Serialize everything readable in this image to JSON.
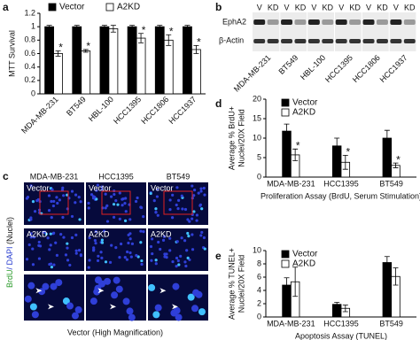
{
  "chart_data": [
    {
      "type": "bar",
      "panel": "a",
      "ylabel": [
        "MTT Survival"
      ],
      "categories": [
        "MDA-MB-231",
        "BT549",
        "HBL-100",
        "HCC1395",
        "HCC1806",
        "HCC1937"
      ],
      "series": [
        {
          "name": "Vector",
          "color": "#000000",
          "values": [
            1,
            1,
            1,
            1,
            1,
            1
          ],
          "errors": [
            0.02,
            0.02,
            0.02,
            0.02,
            0.02,
            0.02
          ]
        },
        {
          "name": "A2KD",
          "color": "#ffffff",
          "values": [
            0.6,
            0.64,
            0.97,
            0.83,
            0.8,
            0.66
          ],
          "errors": [
            0.04,
            0.02,
            0.05,
            0.07,
            0.08,
            0.06
          ],
          "significance": [
            "*",
            "*",
            null,
            "*",
            "*",
            "*"
          ]
        }
      ],
      "ylim": [
        0,
        1.2
      ],
      "yticks": [
        0,
        0.2,
        0.4,
        0.6,
        0.8,
        1,
        1.2
      ],
      "legend": "top",
      "xtick_rotation": 45
    },
    {
      "type": "bar",
      "panel": "d",
      "ylabel": [
        "Average % BrdU+",
        "Nuclei/20X Field"
      ],
      "xlabel": "Proliferation Assay (BrdU, Serum Stimulation)",
      "categories": [
        "MDA-MB-231",
        "HCC1395",
        "BT549"
      ],
      "series": [
        {
          "name": "Vector",
          "color": "#000000",
          "values": [
            11.8,
            8,
            10
          ],
          "errors": [
            1.8,
            2,
            2
          ]
        },
        {
          "name": "A2KD",
          "color": "#ffffff",
          "values": [
            5.7,
            3.8,
            3.0
          ],
          "errors": [
            1.5,
            1.8,
            0.6
          ],
          "significance": [
            "*",
            "*",
            "*"
          ]
        }
      ],
      "ylim": [
        0,
        20
      ],
      "yticks": [
        0,
        5,
        10,
        15,
        20
      ],
      "legend": "upper left",
      "xtick_rotation": 0
    },
    {
      "type": "bar",
      "panel": "e",
      "ylabel": [
        "Average % TUNEL+",
        "Nuclei/20X Field"
      ],
      "xlabel": "Apoptosis Assay (TUNEL)",
      "categories": [
        "MDA-MB-231",
        "HCC1395",
        "BT549"
      ],
      "series": [
        {
          "name": "Vector",
          "color": "#000000",
          "values": [
            4.8,
            1.9,
            8.2
          ],
          "errors": [
            1.1,
            0.3,
            0.9
          ]
        },
        {
          "name": "A2KD",
          "color": "#ffffff",
          "values": [
            5.3,
            1.3,
            6.1
          ],
          "errors": [
            2.2,
            0.5,
            1.3
          ]
        }
      ],
      "ylim": [
        0,
        10
      ],
      "yticks": [
        0,
        2,
        4,
        6,
        8,
        10
      ],
      "legend": "upper left",
      "xtick_rotation": 0
    }
  ],
  "blot": {
    "panel": "b",
    "lanes": [
      "V",
      "KD",
      "V",
      "KD",
      "V",
      "KD",
      "V",
      "KD",
      "V",
      "KD",
      "V",
      "KD"
    ],
    "rows": [
      "EphA2",
      "β-Actin"
    ],
    "cell_lines": [
      "MDA-MB-231",
      "BT549",
      "HBL-100",
      "HCC1395",
      "HCC1806",
      "HCC1937"
    ]
  },
  "images": {
    "panel": "c",
    "columns": [
      "MDA-MB-231",
      "HCC1395",
      "BT549"
    ],
    "rows": [
      "Vector",
      "A2KD"
    ],
    "side_label": [
      "BrdU",
      "/ DAPI",
      " (Nuclei)"
    ],
    "caption": "Vector (High Magnification)"
  }
}
